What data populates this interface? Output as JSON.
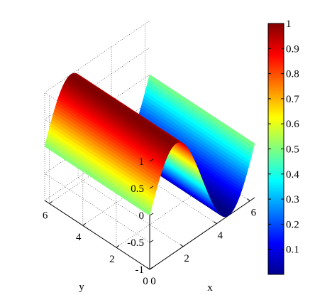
{
  "chart_data": {
    "type": "surface",
    "function": "z = sin(x)",
    "x": [
      0,
      0.5,
      1,
      1.5,
      2,
      2.5,
      3,
      3.5,
      4,
      4.5,
      5,
      5.5,
      6,
      6.283
    ],
    "z": [
      0,
      0.479,
      0.841,
      0.997,
      0.909,
      0.598,
      0.141,
      -0.351,
      -0.757,
      -0.978,
      -0.959,
      -0.706,
      -0.279,
      0
    ],
    "y_range": [
      0,
      6.283
    ],
    "xlabel": "x",
    "ylabel": "y",
    "zlabel": "",
    "x_ticks": [
      "0",
      "2",
      "4",
      "6"
    ],
    "y_ticks": [
      "0",
      "2",
      "4",
      "6"
    ],
    "z_ticks": [
      "-1",
      "-0.5",
      "0",
      "0.5",
      "1"
    ],
    "xlim": [
      0,
      6.283
    ],
    "ylim": [
      0,
      6.283
    ],
    "zlim": [
      -1,
      1
    ],
    "grid": true,
    "colormap": "jet",
    "color_variable": "(z + 1) / 2",
    "colorbar": {
      "range": [
        0,
        1
      ],
      "ticks": [
        "0.1",
        "0.2",
        "0.3",
        "0.4",
        "0.5",
        "0.6",
        "0.7",
        "0.8",
        "0.9",
        "1"
      ],
      "placement": "right"
    }
  }
}
